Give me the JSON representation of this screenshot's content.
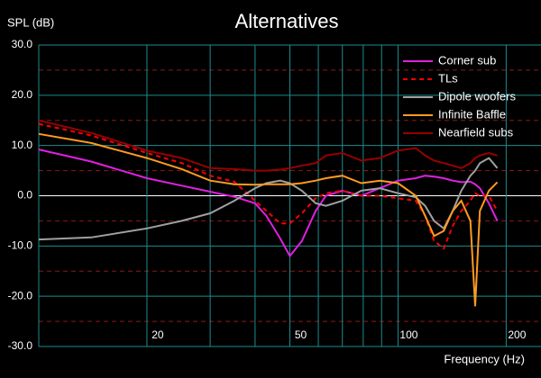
{
  "chart_data": {
    "type": "line",
    "title": "Alternatives",
    "y_label": "SPL (dB)",
    "x_label": "Frequency (Hz)",
    "x_log": true,
    "grid": true,
    "x": [
      10,
      14,
      20,
      25,
      30,
      35,
      40,
      43,
      47,
      50,
      54,
      59,
      63,
      70,
      79,
      89,
      100,
      112,
      119,
      126,
      134,
      142,
      150,
      159,
      164,
      169,
      179,
      189
    ],
    "xlim": [
      10,
      250
    ],
    "xticks": [
      20,
      50,
      100,
      200
    ],
    "x_minor_ticks": [
      30,
      40,
      60,
      70,
      80,
      90
    ],
    "ylim": [
      -30,
      30
    ],
    "yticks": [
      {
        "value": 30,
        "label": "30.0"
      },
      {
        "value": 20,
        "label": "20.0"
      },
      {
        "value": 10,
        "label": "10.0"
      },
      {
        "value": 0,
        "label": "0.0"
      },
      {
        "value": -10,
        "label": "-10.0"
      },
      {
        "value": -20,
        "label": "-20.0"
      },
      {
        "value": -30,
        "label": "-30.0"
      }
    ],
    "y_minor_ticks": [
      25,
      15,
      5,
      -5,
      -15,
      -25
    ],
    "legend": "upper right",
    "series": [
      {
        "name": "Corner sub",
        "color": "#e020e0",
        "dashed": false,
        "values": [
          9.2,
          6.8,
          3.5,
          2,
          0.8,
          -0.2,
          -1.5,
          -4,
          -8.5,
          -12,
          -9,
          -3,
          0,
          1,
          0,
          1.5,
          3,
          3.5,
          4,
          3.8,
          3.5,
          3,
          2.7,
          2.8,
          2.3,
          1.5,
          -1.5,
          -5
        ]
      },
      {
        "name": "TLs",
        "color": "#ff0000",
        "dashed": true,
        "values": [
          14.3,
          12,
          8.5,
          6.5,
          4,
          2.8,
          -1,
          -3,
          -5.5,
          -5.5,
          -3.5,
          -0.5,
          0.5,
          1,
          0,
          0,
          -0.5,
          -1,
          -4,
          -9,
          -10.5,
          -6,
          -3,
          -1,
          0.5,
          0,
          0,
          -3
        ]
      },
      {
        "name": "Dipole woofers",
        "color": "#a0a0a0",
        "dashed": false,
        "values": [
          -8.7,
          -8.3,
          -6.5,
          -5,
          -3.5,
          -1,
          1.5,
          2.5,
          3,
          2.5,
          1,
          -1.5,
          -2,
          -1,
          1,
          1.5,
          0.5,
          -0.3,
          -2,
          -5,
          -6.5,
          -3,
          1,
          4,
          5,
          6.5,
          7.5,
          5.5
        ]
      },
      {
        "name": "Infinite Baffle",
        "color": "#ff9a20",
        "dashed": false,
        "values": [
          12.3,
          10.5,
          7.5,
          5.3,
          3,
          2.3,
          2.2,
          2.3,
          2.3,
          2.3,
          2.5,
          3,
          3.5,
          4,
          2.5,
          3,
          2.5,
          0,
          -4,
          -8,
          -7,
          -3,
          -1,
          -5,
          -22,
          -3,
          1,
          2.7
        ]
      },
      {
        "name": "Nearfield subs",
        "color": "#990000",
        "dashed": false,
        "values": [
          15,
          12.5,
          9,
          7.5,
          5.5,
          5.3,
          5,
          5,
          5.2,
          5.5,
          6,
          6.5,
          8,
          8.5,
          7,
          7.5,
          9,
          9.5,
          8,
          7,
          6.5,
          6,
          5.5,
          6.5,
          7.5,
          8,
          8.5,
          8
        ]
      }
    ]
  }
}
